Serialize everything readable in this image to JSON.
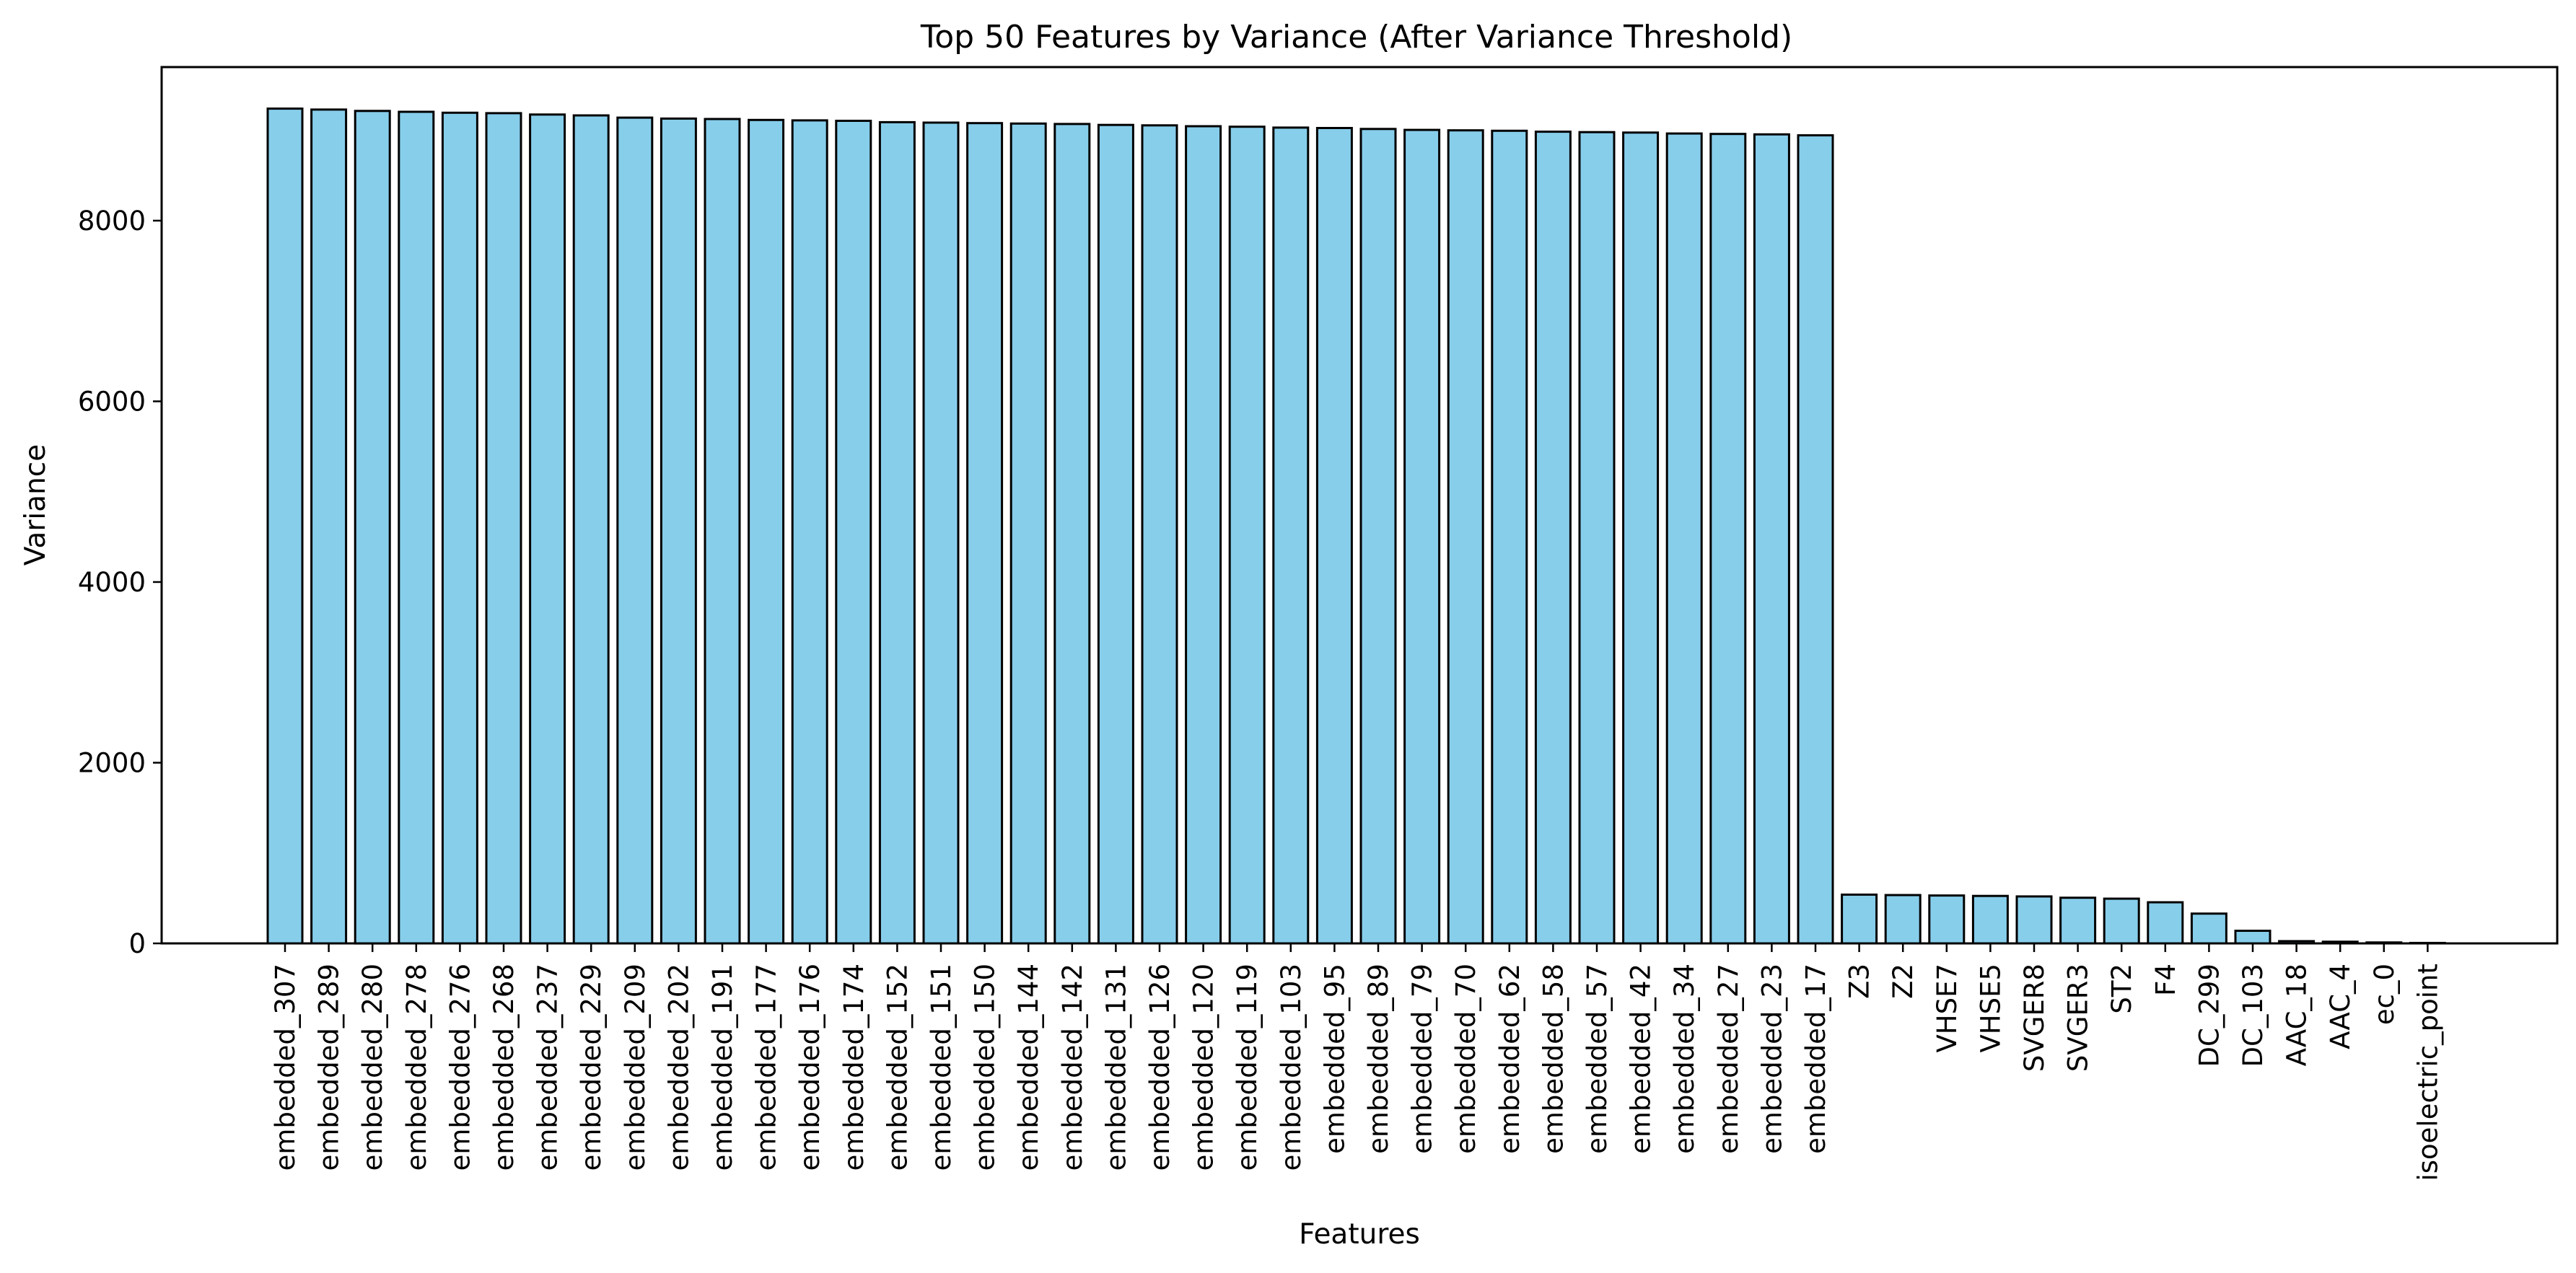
{
  "chart_data": {
    "type": "bar",
    "title": "Top 50 Features by Variance (After Variance Threshold)",
    "xlabel": "Features",
    "ylabel": "Variance",
    "ylim": [
      0,
      9700
    ],
    "yticks": [
      0,
      2000,
      4000,
      6000,
      8000
    ],
    "grid": false,
    "bar_color": "#87ceeb",
    "edge_color": "#000000",
    "categories": [
      "embedded_307",
      "embedded_289",
      "embedded_280",
      "embedded_278",
      "embedded_276",
      "embedded_268",
      "embedded_237",
      "embedded_229",
      "embedded_209",
      "embedded_202",
      "embedded_191",
      "embedded_177",
      "embedded_176",
      "embedded_174",
      "embedded_152",
      "embedded_151",
      "embedded_150",
      "embedded_144",
      "embedded_142",
      "embedded_131",
      "embedded_126",
      "embedded_120",
      "embedded_119",
      "embedded_103",
      "embedded_95",
      "embedded_89",
      "embedded_79",
      "embedded_70",
      "embedded_62",
      "embedded_58",
      "embedded_57",
      "embedded_42",
      "embedded_34",
      "embedded_27",
      "embedded_23",
      "embedded_17",
      "Z3",
      "Z2",
      "VHSE7",
      "VHSE5",
      "SVGER8",
      "SVGER3",
      "ST2",
      "F4",
      "DC_299",
      "DC_103",
      "AAC_18",
      "AAC_4",
      "ec_0",
      "isoelectric_point"
    ],
    "values": [
      9240,
      9230,
      9215,
      9205,
      9195,
      9190,
      9175,
      9165,
      9140,
      9130,
      9125,
      9115,
      9110,
      9105,
      9090,
      9085,
      9080,
      9075,
      9070,
      9060,
      9055,
      9045,
      9040,
      9030,
      9025,
      9015,
      9005,
      9000,
      8995,
      8985,
      8980,
      8975,
      8965,
      8960,
      8955,
      8945,
      540,
      535,
      530,
      525,
      520,
      505,
      495,
      455,
      330,
      140,
      25,
      18,
      10,
      5
    ]
  }
}
